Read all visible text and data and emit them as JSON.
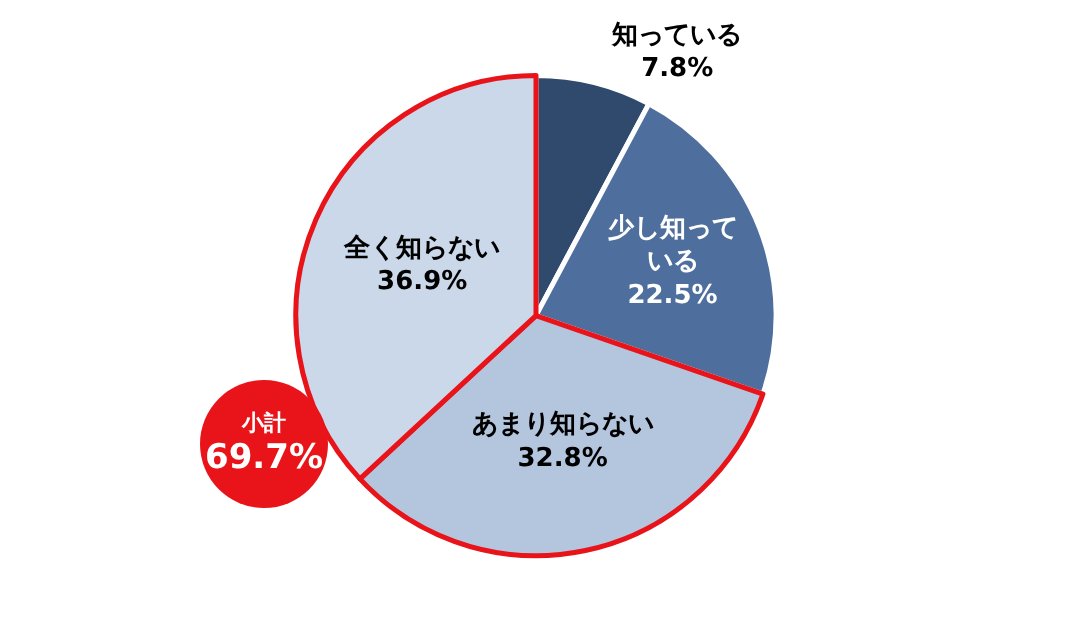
{
  "chart_data": {
    "type": "pie",
    "categories": [
      "知っている",
      "少し知っている",
      "あまり知らない",
      "全く知らない"
    ],
    "value_labels": [
      "7.8%",
      "22.5%",
      "32.8%",
      "36.9%"
    ],
    "values": [
      7.8,
      22.5,
      32.8,
      36.9
    ],
    "colors": [
      "#2f4a6c",
      "#4e6f9e",
      "#b4c6de",
      "#cbd8ea"
    ],
    "legend": false,
    "annotations": [
      "小計",
      "69.7%"
    ]
  }
}
